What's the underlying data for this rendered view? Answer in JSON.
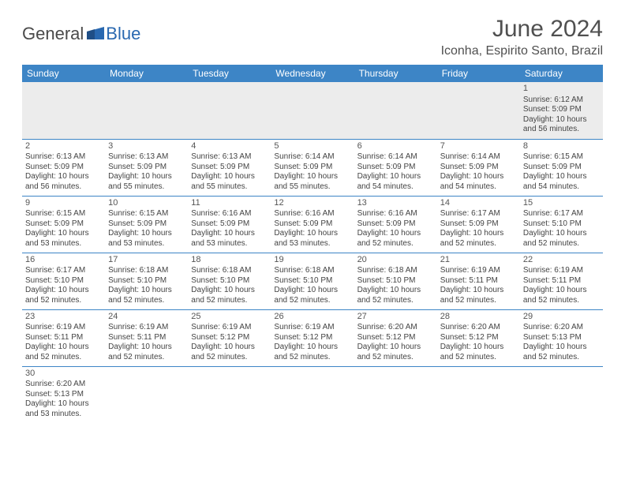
{
  "logo": {
    "text1": "General",
    "text2": "Blue",
    "color1": "#4a4a4a",
    "color2": "#2968b0"
  },
  "title": "June 2024",
  "location": "Iconha, Espirito Santo, Brazil",
  "colors": {
    "header_bg": "#3d85c6",
    "header_text": "#ffffff",
    "row_border": "#3d85c6",
    "alt_row_bg": "#ececec",
    "body_text": "#444444",
    "title_text": "#505050"
  },
  "fonts": {
    "title_size": 30,
    "location_size": 16,
    "header_size": 12,
    "cell_size": 10,
    "daynum_size": 11
  },
  "day_headers": [
    "Sunday",
    "Monday",
    "Tuesday",
    "Wednesday",
    "Thursday",
    "Friday",
    "Saturday"
  ],
  "weeks": [
    [
      null,
      null,
      null,
      null,
      null,
      null,
      {
        "n": "1",
        "sr": "Sunrise: 6:12 AM",
        "ss": "Sunset: 5:09 PM",
        "d1": "Daylight: 10 hours",
        "d2": "and 56 minutes."
      }
    ],
    [
      {
        "n": "2",
        "sr": "Sunrise: 6:13 AM",
        "ss": "Sunset: 5:09 PM",
        "d1": "Daylight: 10 hours",
        "d2": "and 56 minutes."
      },
      {
        "n": "3",
        "sr": "Sunrise: 6:13 AM",
        "ss": "Sunset: 5:09 PM",
        "d1": "Daylight: 10 hours",
        "d2": "and 55 minutes."
      },
      {
        "n": "4",
        "sr": "Sunrise: 6:13 AM",
        "ss": "Sunset: 5:09 PM",
        "d1": "Daylight: 10 hours",
        "d2": "and 55 minutes."
      },
      {
        "n": "5",
        "sr": "Sunrise: 6:14 AM",
        "ss": "Sunset: 5:09 PM",
        "d1": "Daylight: 10 hours",
        "d2": "and 55 minutes."
      },
      {
        "n": "6",
        "sr": "Sunrise: 6:14 AM",
        "ss": "Sunset: 5:09 PM",
        "d1": "Daylight: 10 hours",
        "d2": "and 54 minutes."
      },
      {
        "n": "7",
        "sr": "Sunrise: 6:14 AM",
        "ss": "Sunset: 5:09 PM",
        "d1": "Daylight: 10 hours",
        "d2": "and 54 minutes."
      },
      {
        "n": "8",
        "sr": "Sunrise: 6:15 AM",
        "ss": "Sunset: 5:09 PM",
        "d1": "Daylight: 10 hours",
        "d2": "and 54 minutes."
      }
    ],
    [
      {
        "n": "9",
        "sr": "Sunrise: 6:15 AM",
        "ss": "Sunset: 5:09 PM",
        "d1": "Daylight: 10 hours",
        "d2": "and 53 minutes."
      },
      {
        "n": "10",
        "sr": "Sunrise: 6:15 AM",
        "ss": "Sunset: 5:09 PM",
        "d1": "Daylight: 10 hours",
        "d2": "and 53 minutes."
      },
      {
        "n": "11",
        "sr": "Sunrise: 6:16 AM",
        "ss": "Sunset: 5:09 PM",
        "d1": "Daylight: 10 hours",
        "d2": "and 53 minutes."
      },
      {
        "n": "12",
        "sr": "Sunrise: 6:16 AM",
        "ss": "Sunset: 5:09 PM",
        "d1": "Daylight: 10 hours",
        "d2": "and 53 minutes."
      },
      {
        "n": "13",
        "sr": "Sunrise: 6:16 AM",
        "ss": "Sunset: 5:09 PM",
        "d1": "Daylight: 10 hours",
        "d2": "and 52 minutes."
      },
      {
        "n": "14",
        "sr": "Sunrise: 6:17 AM",
        "ss": "Sunset: 5:09 PM",
        "d1": "Daylight: 10 hours",
        "d2": "and 52 minutes."
      },
      {
        "n": "15",
        "sr": "Sunrise: 6:17 AM",
        "ss": "Sunset: 5:10 PM",
        "d1": "Daylight: 10 hours",
        "d2": "and 52 minutes."
      }
    ],
    [
      {
        "n": "16",
        "sr": "Sunrise: 6:17 AM",
        "ss": "Sunset: 5:10 PM",
        "d1": "Daylight: 10 hours",
        "d2": "and 52 minutes."
      },
      {
        "n": "17",
        "sr": "Sunrise: 6:18 AM",
        "ss": "Sunset: 5:10 PM",
        "d1": "Daylight: 10 hours",
        "d2": "and 52 minutes."
      },
      {
        "n": "18",
        "sr": "Sunrise: 6:18 AM",
        "ss": "Sunset: 5:10 PM",
        "d1": "Daylight: 10 hours",
        "d2": "and 52 minutes."
      },
      {
        "n": "19",
        "sr": "Sunrise: 6:18 AM",
        "ss": "Sunset: 5:10 PM",
        "d1": "Daylight: 10 hours",
        "d2": "and 52 minutes."
      },
      {
        "n": "20",
        "sr": "Sunrise: 6:18 AM",
        "ss": "Sunset: 5:10 PM",
        "d1": "Daylight: 10 hours",
        "d2": "and 52 minutes."
      },
      {
        "n": "21",
        "sr": "Sunrise: 6:19 AM",
        "ss": "Sunset: 5:11 PM",
        "d1": "Daylight: 10 hours",
        "d2": "and 52 minutes."
      },
      {
        "n": "22",
        "sr": "Sunrise: 6:19 AM",
        "ss": "Sunset: 5:11 PM",
        "d1": "Daylight: 10 hours",
        "d2": "and 52 minutes."
      }
    ],
    [
      {
        "n": "23",
        "sr": "Sunrise: 6:19 AM",
        "ss": "Sunset: 5:11 PM",
        "d1": "Daylight: 10 hours",
        "d2": "and 52 minutes."
      },
      {
        "n": "24",
        "sr": "Sunrise: 6:19 AM",
        "ss": "Sunset: 5:11 PM",
        "d1": "Daylight: 10 hours",
        "d2": "and 52 minutes."
      },
      {
        "n": "25",
        "sr": "Sunrise: 6:19 AM",
        "ss": "Sunset: 5:12 PM",
        "d1": "Daylight: 10 hours",
        "d2": "and 52 minutes."
      },
      {
        "n": "26",
        "sr": "Sunrise: 6:19 AM",
        "ss": "Sunset: 5:12 PM",
        "d1": "Daylight: 10 hours",
        "d2": "and 52 minutes."
      },
      {
        "n": "27",
        "sr": "Sunrise: 6:20 AM",
        "ss": "Sunset: 5:12 PM",
        "d1": "Daylight: 10 hours",
        "d2": "and 52 minutes."
      },
      {
        "n": "28",
        "sr": "Sunrise: 6:20 AM",
        "ss": "Sunset: 5:12 PM",
        "d1": "Daylight: 10 hours",
        "d2": "and 52 minutes."
      },
      {
        "n": "29",
        "sr": "Sunrise: 6:20 AM",
        "ss": "Sunset: 5:13 PM",
        "d1": "Daylight: 10 hours",
        "d2": "and 52 minutes."
      }
    ],
    [
      {
        "n": "30",
        "sr": "Sunrise: 6:20 AM",
        "ss": "Sunset: 5:13 PM",
        "d1": "Daylight: 10 hours",
        "d2": "and 53 minutes."
      },
      null,
      null,
      null,
      null,
      null,
      null
    ]
  ]
}
